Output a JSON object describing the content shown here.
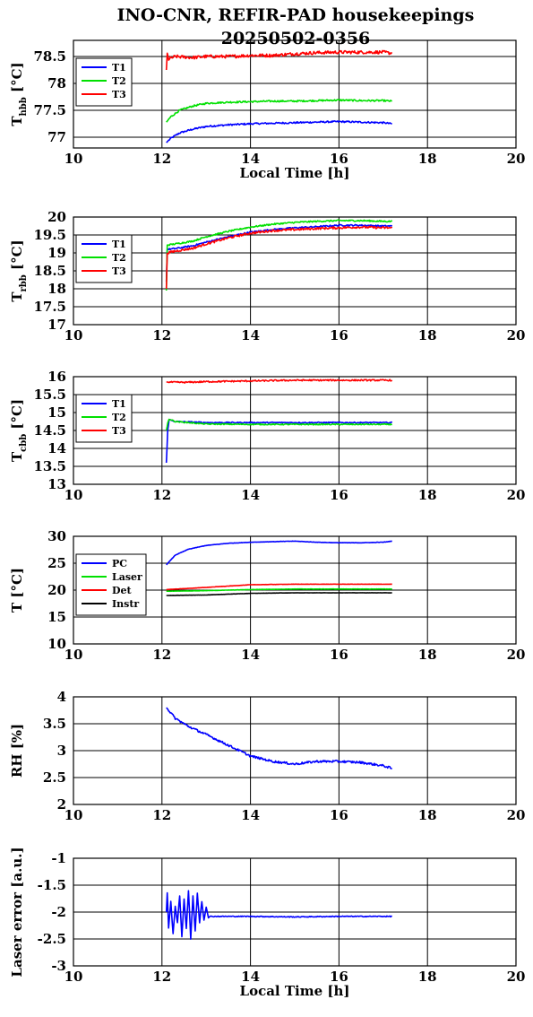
{
  "figure": {
    "title_line1": "INO-CNR, REFIR-PAD housekeepings",
    "title_line2": "20250502-0356"
  },
  "chart_data": [
    {
      "type": "line",
      "ylabel_main": "T",
      "ylabel_sub": "hbb",
      "ylabel_unit": " [°C]",
      "xlabel": "Local Time [h]",
      "xlim": [
        10,
        20
      ],
      "ylim": [
        76.8,
        78.8
      ],
      "xticks": [
        "10",
        "12",
        "14",
        "16",
        "18",
        "20"
      ],
      "yticks": [
        {
          "v": 77,
          "label": "77"
        },
        {
          "v": 77.5,
          "label": "77.5"
        },
        {
          "v": 78,
          "label": "78"
        },
        {
          "v": 78.5,
          "label": "78.5"
        }
      ],
      "grid": true,
      "legend_position": "top-left",
      "series": [
        {
          "name": "T1",
          "color": "#0000ff",
          "noise": 0.015,
          "x": [
            12.1,
            12.2,
            12.4,
            12.7,
            13.0,
            13.5,
            14.0,
            14.5,
            15.0,
            15.5,
            16.0,
            16.5,
            17.0,
            17.2
          ],
          "y": [
            76.9,
            76.98,
            77.08,
            77.15,
            77.2,
            77.23,
            77.25,
            77.26,
            77.27,
            77.28,
            77.29,
            77.28,
            77.27,
            77.25
          ]
        },
        {
          "name": "T2",
          "color": "#00e000",
          "noise": 0.015,
          "x": [
            12.1,
            12.2,
            12.4,
            12.7,
            13.0,
            13.5,
            14.0,
            14.5,
            15.0,
            15.5,
            16.0,
            16.5,
            17.0,
            17.2
          ],
          "y": [
            77.28,
            77.38,
            77.5,
            77.58,
            77.63,
            77.65,
            77.66,
            77.67,
            77.67,
            77.68,
            77.69,
            77.68,
            77.68,
            77.67
          ]
        },
        {
          "name": "T3",
          "color": "#ff0000",
          "noise": 0.03,
          "x": [
            12.1,
            12.12,
            12.15,
            12.3,
            12.7,
            13.0,
            13.5,
            14.0,
            14.5,
            15.0,
            15.5,
            16.0,
            16.5,
            17.0,
            17.2
          ],
          "y": [
            78.25,
            78.55,
            78.45,
            78.5,
            78.48,
            78.5,
            78.5,
            78.52,
            78.52,
            78.55,
            78.57,
            78.58,
            78.58,
            78.58,
            78.56
          ]
        }
      ]
    },
    {
      "type": "line",
      "ylabel_main": "T",
      "ylabel_sub": "rbb",
      "ylabel_unit": " [°C]",
      "xlabel": "",
      "xlim": [
        10,
        20
      ],
      "ylim": [
        17,
        20
      ],
      "xticks": [
        "10",
        "12",
        "14",
        "16",
        "18",
        "20"
      ],
      "yticks": [
        {
          "v": 17,
          "label": "17"
        },
        {
          "v": 17.5,
          "label": "17.5"
        },
        {
          "v": 18,
          "label": "18"
        },
        {
          "v": 18.5,
          "label": "18.5"
        },
        {
          "v": 19,
          "label": "19"
        },
        {
          "v": 19.5,
          "label": "19.5"
        },
        {
          "v": 20,
          "label": "20"
        }
      ],
      "grid": true,
      "legend_position": "top-left",
      "series": [
        {
          "name": "T1",
          "color": "#0000ff",
          "noise": 0.02,
          "x": [
            12.1,
            12.12,
            12.3,
            12.7,
            13.0,
            13.5,
            14.0,
            14.5,
            15.0,
            15.5,
            16.0,
            16.5,
            17.0,
            17.2
          ],
          "y": [
            18.2,
            19.1,
            19.12,
            19.2,
            19.3,
            19.45,
            19.58,
            19.65,
            19.7,
            19.73,
            19.77,
            19.77,
            19.75,
            19.75
          ]
        },
        {
          "name": "T2",
          "color": "#00e000",
          "noise": 0.02,
          "x": [
            12.1,
            12.12,
            12.3,
            12.7,
            13.0,
            13.5,
            14.0,
            14.5,
            15.0,
            15.5,
            16.0,
            16.5,
            17.0,
            17.2
          ],
          "y": [
            17.95,
            19.22,
            19.25,
            19.33,
            19.45,
            19.6,
            19.72,
            19.8,
            19.85,
            19.88,
            19.9,
            19.9,
            19.88,
            19.88
          ]
        },
        {
          "name": "T3",
          "color": "#ff0000",
          "noise": 0.03,
          "x": [
            12.1,
            12.12,
            12.3,
            12.7,
            13.0,
            13.5,
            14.0,
            14.5,
            15.0,
            15.5,
            16.0,
            16.5,
            17.0,
            17.2
          ],
          "y": [
            18.0,
            19.0,
            19.05,
            19.13,
            19.25,
            19.42,
            19.55,
            19.62,
            19.65,
            19.68,
            19.7,
            19.72,
            19.7,
            19.7
          ]
        }
      ]
    },
    {
      "type": "line",
      "ylabel_main": "T",
      "ylabel_sub": "cbb",
      "ylabel_unit": " [°C]",
      "xlabel": "",
      "xlim": [
        10,
        20
      ],
      "ylim": [
        13,
        16
      ],
      "xticks": [
        "10",
        "12",
        "14",
        "16",
        "18",
        "20"
      ],
      "yticks": [
        {
          "v": 13,
          "label": "13"
        },
        {
          "v": 13.5,
          "label": "13.5"
        },
        {
          "v": 14,
          "label": "14"
        },
        {
          "v": 14.5,
          "label": "14.5"
        },
        {
          "v": 15,
          "label": "15"
        },
        {
          "v": 15.5,
          "label": "15.5"
        },
        {
          "v": 16,
          "label": "16"
        }
      ],
      "grid": true,
      "legend_position": "top-left",
      "series": [
        {
          "name": "T1",
          "color": "#0000ff",
          "noise": 0.015,
          "x": [
            12.1,
            12.13,
            12.16,
            12.3,
            13.0,
            14.0,
            15.0,
            16.0,
            17.0,
            17.2
          ],
          "y": [
            13.6,
            14.5,
            14.8,
            14.75,
            14.72,
            14.72,
            14.72,
            14.72,
            14.72,
            14.72
          ]
        },
        {
          "name": "T2",
          "color": "#00e000",
          "noise": 0.015,
          "x": [
            12.1,
            12.13,
            12.16,
            12.3,
            13.0,
            14.0,
            15.0,
            16.0,
            17.0,
            17.2
          ],
          "y": [
            14.5,
            14.7,
            14.82,
            14.75,
            14.68,
            14.67,
            14.67,
            14.67,
            14.67,
            14.67
          ]
        },
        {
          "name": "T3",
          "color": "#ff0000",
          "noise": 0.02,
          "x": [
            12.1,
            12.5,
            13.0,
            14.0,
            15.0,
            16.0,
            17.0,
            17.2
          ],
          "y": [
            15.85,
            15.84,
            15.86,
            15.88,
            15.9,
            15.9,
            15.9,
            15.9
          ]
        }
      ]
    },
    {
      "type": "line",
      "ylabel_main": "T [°C]",
      "ylabel_sub": "",
      "ylabel_unit": "",
      "xlabel": "",
      "xlim": [
        10,
        20
      ],
      "ylim": [
        10,
        30
      ],
      "xticks": [
        "10",
        "12",
        "14",
        "16",
        "18",
        "20"
      ],
      "yticks": [
        {
          "v": 10,
          "label": "10"
        },
        {
          "v": 15,
          "label": "15"
        },
        {
          "v": 20,
          "label": "20"
        },
        {
          "v": 25,
          "label": "25"
        },
        {
          "v": 30,
          "label": "30"
        }
      ],
      "grid": true,
      "legend_position": "top-left",
      "series": [
        {
          "name": "PC",
          "color": "#0000ff",
          "noise": 0.03,
          "x": [
            12.1,
            12.3,
            12.6,
            13.0,
            13.5,
            14.0,
            14.5,
            15.0,
            15.5,
            16.0,
            16.5,
            17.0,
            17.2
          ],
          "y": [
            24.7,
            26.5,
            27.6,
            28.3,
            28.7,
            28.9,
            29.0,
            29.1,
            28.9,
            28.8,
            28.8,
            28.9,
            29.1
          ]
        },
        {
          "name": "Laser",
          "color": "#00e000",
          "noise": 0.02,
          "x": [
            12.1,
            13.0,
            14.0,
            15.0,
            16.0,
            17.0,
            17.2
          ],
          "y": [
            19.8,
            19.9,
            20.1,
            20.2,
            20.2,
            20.2,
            20.2
          ]
        },
        {
          "name": "Det",
          "color": "#ff0000",
          "noise": 0.02,
          "x": [
            12.1,
            13.0,
            14.0,
            15.0,
            16.0,
            17.0,
            17.2
          ],
          "y": [
            20.1,
            20.5,
            21.0,
            21.1,
            21.1,
            21.1,
            21.1
          ]
        },
        {
          "name": "Instr",
          "color": "#000000",
          "noise": 0.02,
          "x": [
            12.1,
            13.0,
            14.0,
            15.0,
            16.0,
            17.0,
            17.2
          ],
          "y": [
            19.0,
            19.1,
            19.4,
            19.5,
            19.5,
            19.5,
            19.5
          ]
        }
      ]
    },
    {
      "type": "line",
      "ylabel_main": "RH [%]",
      "ylabel_sub": "",
      "ylabel_unit": "",
      "xlabel": "",
      "xlim": [
        10,
        20
      ],
      "ylim": [
        2,
        4
      ],
      "xticks": [
        "10",
        "12",
        "14",
        "16",
        "18",
        "20"
      ],
      "yticks": [
        {
          "v": 2,
          "label": "2"
        },
        {
          "v": 2.5,
          "label": "2.5"
        },
        {
          "v": 3,
          "label": "3"
        },
        {
          "v": 3.5,
          "label": "3.5"
        },
        {
          "v": 4,
          "label": "4"
        }
      ],
      "grid": true,
      "legend_position": "none",
      "series": [
        {
          "color": "#0000ff",
          "noise": 0.02,
          "x": [
            12.1,
            12.3,
            12.6,
            13.0,
            13.5,
            14.0,
            14.5,
            15.0,
            15.5,
            16.0,
            16.5,
            17.0,
            17.2
          ],
          "y": [
            3.8,
            3.6,
            3.45,
            3.3,
            3.1,
            2.9,
            2.8,
            2.75,
            2.8,
            2.8,
            2.78,
            2.72,
            2.67
          ]
        }
      ]
    },
    {
      "type": "line",
      "ylabel_main": "Laser error [a.u.]",
      "ylabel_sub": "",
      "ylabel_unit": "",
      "xlabel": "Local Time [h]",
      "xlim": [
        10,
        20
      ],
      "ylim": [
        -3,
        -1
      ],
      "xticks": [
        "10",
        "12",
        "14",
        "16",
        "18",
        "20"
      ],
      "yticks": [
        {
          "v": -3,
          "label": "-3"
        },
        {
          "v": -2.5,
          "label": "-2.5"
        },
        {
          "v": -2,
          "label": "-2"
        },
        {
          "v": -1.5,
          "label": "-1.5"
        },
        {
          "v": -1,
          "label": "-1"
        }
      ],
      "grid": true,
      "legend_position": "none",
      "series": [
        {
          "color": "#0000ff",
          "noise": 0.008,
          "x": [
            12.1,
            12.12,
            12.15,
            12.2,
            12.25,
            12.3,
            12.35,
            12.4,
            12.45,
            12.5,
            12.55,
            12.6,
            12.65,
            12.7,
            12.75,
            12.8,
            12.85,
            12.9,
            12.95,
            13.0,
            13.05,
            13.1,
            14.0,
            15.0,
            16.0,
            17.0,
            17.2
          ],
          "y": [
            -2.0,
            -1.65,
            -2.3,
            -1.8,
            -2.4,
            -1.9,
            -2.2,
            -1.7,
            -2.45,
            -1.75,
            -2.3,
            -1.6,
            -2.5,
            -1.7,
            -2.35,
            -1.65,
            -2.2,
            -1.8,
            -2.15,
            -1.9,
            -2.1,
            -2.08,
            -2.08,
            -2.09,
            -2.08,
            -2.08,
            -2.08
          ]
        }
      ]
    }
  ]
}
